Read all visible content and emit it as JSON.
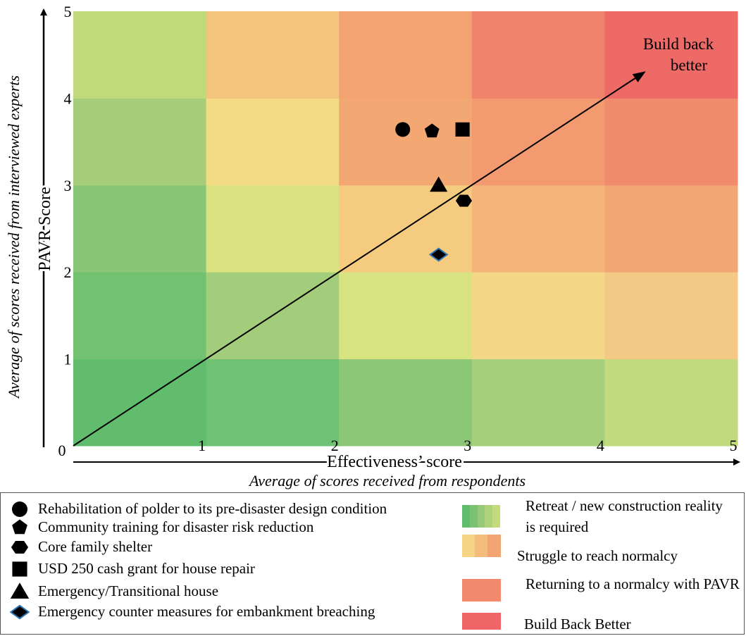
{
  "chart_data": {
    "type": "scatter",
    "xlabel": "Effectiveness’ score",
    "xlabel_sub": "Average of scores received from respondents",
    "ylabel": "PAVR Score",
    "ylabel_sub": "Average of scores received from interviewed experts",
    "xlim": [
      0,
      5
    ],
    "ylim": [
      0,
      5
    ],
    "x_ticks": [
      "1",
      "2",
      "3",
      "4",
      "5"
    ],
    "y_ticks": [
      "1",
      "2",
      "3",
      "4",
      "5"
    ],
    "origin_label": "0",
    "annotation": "Build back better",
    "diagonal_arrow": {
      "from": [
        0,
        0
      ],
      "to": [
        4.3,
        4.3
      ]
    },
    "heatmap_colors": [
      [
        "#61bd6d",
        "#71c170",
        "#8ac677",
        "#a6cd7a",
        "#bfd97b"
      ],
      [
        "#6fc173",
        "#a3cd7b",
        "#d9e27f",
        "#f2db84",
        "#f3c47e"
      ],
      [
        "#8cc777",
        "#d7e280",
        "#f5cc7f",
        "#f3a873",
        "#f3a372"
      ],
      [
        "#a5cf7a",
        "#f4d687",
        "#f4b57a",
        "#f39a70",
        "#f0836c"
      ],
      [
        "#c0da7d",
        "#f4c885",
        "#f2a775",
        "#f08b6c",
        "#ee6a67"
      ]
    ],
    "series": [
      {
        "name": "Rehabilitation of polder to its pre-disaster design condition",
        "marker": "circle",
        "x": 2.48,
        "y": 3.64
      },
      {
        "name": "Community training for disaster risk reduction",
        "marker": "pentagon",
        "x": 2.7,
        "y": 3.62
      },
      {
        "name": "Core family shelter",
        "marker": "hexagon",
        "x": 2.94,
        "y": 2.82
      },
      {
        "name": "USD 250 cash grant for house repair",
        "marker": "square",
        "x": 2.93,
        "y": 3.64
      },
      {
        "name": "Emergency/Transitional house",
        "marker": "triangle",
        "x": 2.75,
        "y": 3.0
      },
      {
        "name": "Emergency counter measures for embankment breaching",
        "marker": "diamond",
        "x": 2.75,
        "y": 2.2
      }
    ],
    "zones": [
      {
        "label": "Retreat / new construction reality is required",
        "colors": [
          "#61bd6d",
          "#78c271",
          "#95c977",
          "#b0d27b",
          "#c4da7d"
        ]
      },
      {
        "label": "Struggle to reach normalcy",
        "colors": [
          "#f5d486",
          "#f4bd7d",
          "#f2a473"
        ]
      },
      {
        "label": "Returning to a normalcy with PAVR",
        "colors": [
          "#f2896d"
        ]
      },
      {
        "label": "Build Back Better",
        "colors": [
          "#ef6568"
        ]
      }
    ]
  }
}
